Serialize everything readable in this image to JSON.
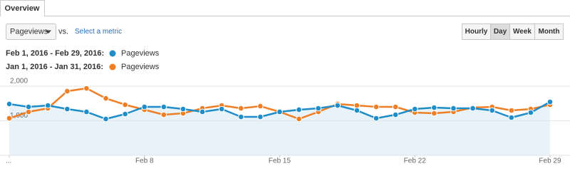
{
  "tab": "Overview",
  "metric_select": "Pageviews",
  "vs": "vs.",
  "select_metric": "Select a metric",
  "buttons": [
    "Hourly",
    "Day",
    "Week",
    "Month"
  ],
  "chart_data": {
    "type": "line",
    "categories": [
      "...",
      null,
      null,
      null,
      null,
      null,
      null,
      "Feb 8",
      null,
      null,
      null,
      null,
      null,
      null,
      "Feb 15",
      null,
      null,
      null,
      null,
      null,
      null,
      "Feb 22",
      null,
      null,
      null,
      null,
      null,
      null,
      "Feb 29"
    ],
    "series": [
      {
        "name": "Pageviews",
        "period": "Feb 1, 2016 - Feb 29, 2016:",
        "color": "#1f8dc8",
        "area_color": "#e7f3f9",
        "values": [
          1485,
          1402,
          1443,
          1340,
          1258,
          1052,
          1196,
          1402,
          1402,
          1340,
          1258,
          1340,
          1113,
          1113,
          1258,
          1320,
          1361,
          1443,
          1299,
          1072,
          1175,
          1340,
          1381,
          1361,
          1361,
          1299,
          1093,
          1237,
          1546
        ]
      },
      {
        "name": "Pageviews",
        "period": "Jan 1, 2016 - Jan 31, 2016:",
        "color": "#f07e25",
        "values": [
          1072,
          1258,
          1361,
          1856,
          1938,
          1649,
          1464,
          1320,
          1175,
          1216,
          1361,
          1443,
          1361,
          1423,
          1258,
          1052,
          1258,
          1485,
          1443,
          1402,
          1402,
          1237,
          1216,
          1258,
          1381,
          1402,
          1299,
          1340,
          1464
        ]
      }
    ],
    "ylim": [
      0,
      2000
    ],
    "yticks": [
      {
        "value": 1000,
        "label": "1,000"
      },
      {
        "value": 2000,
        "label": "2,000"
      }
    ],
    "grid": true
  }
}
